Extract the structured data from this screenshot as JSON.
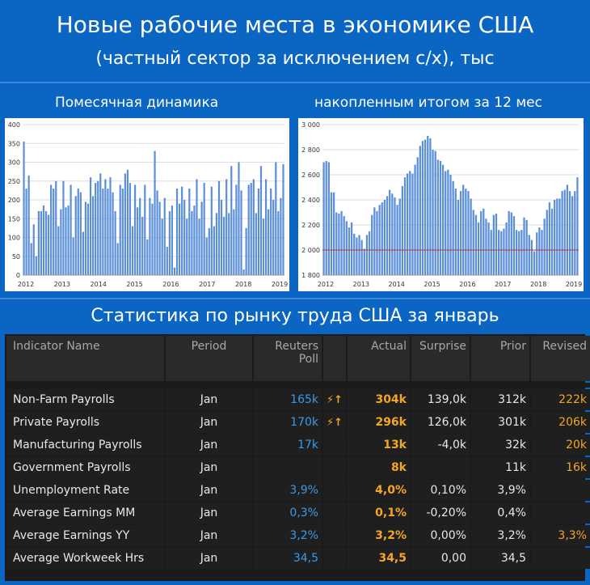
{
  "header": {
    "title": "Новые рабочие места в экономике США",
    "subtitle": "(частный сектор за исключением с/х), тыс"
  },
  "chart_data": [
    {
      "type": "bar",
      "title": "Помесячная динамика",
      "x_tick_labels": [
        "2012",
        "2013",
        "2014",
        "2015",
        "2016",
        "2017",
        "2018",
        "2019"
      ],
      "y_tick_labels": [
        "0",
        "50",
        "100",
        "150",
        "200",
        "250",
        "300",
        "350",
        "400"
      ],
      "ylim": [
        0,
        400
      ],
      "grid": true,
      "values": [
        355,
        230,
        265,
        85,
        135,
        50,
        170,
        170,
        185,
        170,
        160,
        240,
        230,
        250,
        130,
        175,
        250,
        180,
        185,
        240,
        100,
        210,
        230,
        220,
        115,
        195,
        190,
        260,
        210,
        245,
        250,
        270,
        230,
        255,
        230,
        260,
        220,
        170,
        85,
        240,
        230,
        270,
        280,
        245,
        130,
        240,
        180,
        205,
        155,
        240,
        95,
        205,
        190,
        330,
        225,
        195,
        150,
        205,
        75,
        170,
        185,
        20,
        230,
        190,
        235,
        200,
        150,
        230,
        170,
        185,
        255,
        150,
        195,
        245,
        100,
        125,
        235,
        130,
        165,
        250,
        200,
        155,
        255,
        165,
        290,
        175,
        240,
        300,
        225,
        15,
        125,
        240,
        245,
        255,
        165,
        230,
        290,
        150,
        255,
        175,
        230,
        200,
        300,
        170,
        205,
        295
      ]
    },
    {
      "type": "bar",
      "title": "накопленным итогом за 12 мес",
      "x_tick_labels": [
        "2012",
        "2013",
        "2014",
        "2015",
        "2016",
        "2017",
        "2018",
        "2019"
      ],
      "y_tick_labels": [
        "1 800",
        "2 000",
        "2 200",
        "2 400",
        "2 600",
        "2 800",
        "3 000"
      ],
      "ylim": [
        1800,
        3000
      ],
      "grid": true,
      "reference_line": 2000,
      "values": [
        2700,
        2710,
        2700,
        2460,
        2460,
        2300,
        2290,
        2310,
        2270,
        2230,
        2180,
        2220,
        2130,
        2100,
        2120,
        2080,
        2010,
        2120,
        2150,
        2280,
        2340,
        2310,
        2360,
        2380,
        2400,
        2430,
        2480,
        2450,
        2420,
        2360,
        2410,
        2510,
        2580,
        2610,
        2630,
        2610,
        2680,
        2740,
        2830,
        2870,
        2880,
        2910,
        2890,
        2800,
        2790,
        2720,
        2710,
        2680,
        2630,
        2640,
        2600,
        2550,
        2490,
        2400,
        2470,
        2520,
        2490,
        2470,
        2410,
        2320,
        2280,
        2220,
        2310,
        2330,
        2250,
        2220,
        2160,
        2280,
        2290,
        2160,
        2150,
        2170,
        2220,
        2310,
        2300,
        2270,
        2160,
        2150,
        2160,
        2260,
        2240,
        2120,
        2080,
        1990,
        2140,
        2180,
        2160,
        2250,
        2320,
        2380,
        2330,
        2400,
        2410,
        2410,
        2470,
        2480,
        2520,
        2470,
        2430,
        2470,
        2580
      ]
    }
  ],
  "section_title": "Статистика по рынку труда США за январь",
  "table": {
    "headers": [
      "Indicator Name",
      "Period",
      "Reuters Poll",
      "",
      "Actual",
      "Surprise",
      "Prior",
      "Revised"
    ],
    "rows": [
      {
        "name": "Non-Farm Payrolls",
        "period": "Jan",
        "poll": "165k",
        "flash": "⚡↑",
        "actual": "304k",
        "surprise": "139,0k",
        "prior": "312k",
        "revised": "222k"
      },
      {
        "name": "Private Payrolls",
        "period": "Jan",
        "poll": "170k",
        "flash": "⚡↑",
        "actual": "296k",
        "surprise": "126,0k",
        "prior": "301k",
        "revised": "206k"
      },
      {
        "name": "Manufacturing Payrolls",
        "period": "Jan",
        "poll": "17k",
        "flash": "",
        "actual": "13k",
        "surprise": "-4,0k",
        "prior": "32k",
        "revised": "20k"
      },
      {
        "name": "Government Payrolls",
        "period": "Jan",
        "poll": "",
        "flash": "",
        "actual": "8k",
        "surprise": "",
        "prior": "11k",
        "revised": "16k"
      },
      {
        "name": "Unemployment Rate",
        "period": "Jan",
        "poll": "3,9%",
        "flash": "",
        "actual": "4,0%",
        "surprise": "0,10%",
        "prior": "3,9%",
        "revised": ""
      },
      {
        "name": "Average Earnings MM",
        "period": "Jan",
        "poll": "0,3%",
        "flash": "",
        "actual": "0,1%",
        "surprise": "-0,20%",
        "prior": "0,4%",
        "revised": ""
      },
      {
        "name": "Average Earnings YY",
        "period": "Jan",
        "poll": "3,2%",
        "flash": "",
        "actual": "3,2%",
        "surprise": "0,00%",
        "prior": "3,2%",
        "revised": "3,3%"
      },
      {
        "name": "Average Workweek Hrs",
        "period": "Jan",
        "poll": "34,5",
        "flash": "",
        "actual": "34,5",
        "surprise": "0,00",
        "prior": "34,5",
        "revised": ""
      }
    ]
  }
}
